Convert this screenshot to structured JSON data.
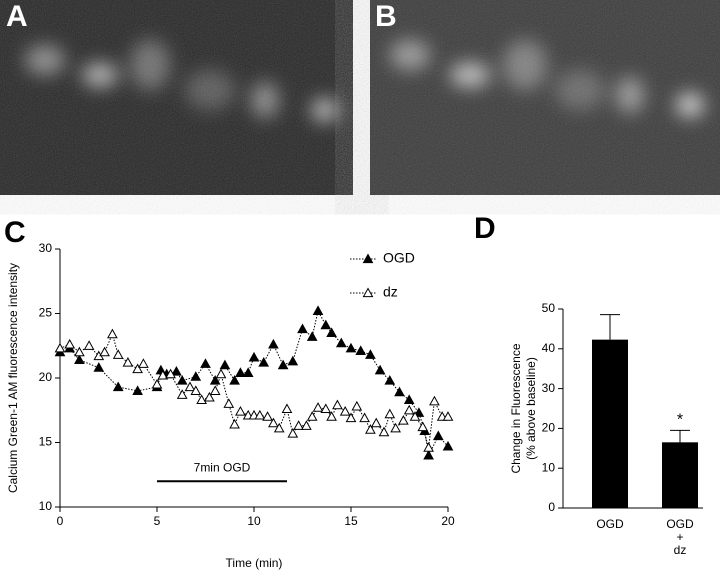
{
  "images": [
    {
      "panel_label": "A"
    },
    {
      "panel_label": "B"
    }
  ],
  "chart_data": [
    {
      "type": "line",
      "panel_label": "C",
      "xlabel": "Time (min)",
      "ylabel": "Calcium Green-1 AM  fluorescence intensity",
      "xlim": [
        0,
        20
      ],
      "ylim": [
        10,
        30
      ],
      "xticks": [
        0,
        5,
        10,
        15,
        20
      ],
      "yticks": [
        10,
        15,
        20,
        25,
        30
      ],
      "legend": "top-right",
      "annotation": {
        "text": "7min OGD",
        "x": [
          5,
          11.7
        ],
        "y": 12
      },
      "series": [
        {
          "name": "OGD",
          "color": "#000000",
          "marker": "filled-triangle",
          "x": [
            0,
            0.5,
            1,
            2,
            3,
            4,
            5,
            5.2,
            5.5,
            6,
            6.3,
            7,
            7.5,
            8,
            8.5,
            9,
            9.3,
            9.7,
            10,
            10.5,
            11,
            11.5,
            12,
            12.5,
            13,
            13.3,
            13.7,
            14,
            14.5,
            15,
            15.5,
            16,
            16.5,
            17,
            17.5,
            18,
            18.5,
            18.8,
            19,
            19.5,
            20
          ],
          "values": [
            22.0,
            22.3,
            21.4,
            20.8,
            19.3,
            19.0,
            19.3,
            20.6,
            20.3,
            20.5,
            19.8,
            20.1,
            21.1,
            19.8,
            21.0,
            19.8,
            20.4,
            20.4,
            21.6,
            21.2,
            22.6,
            21.0,
            21.3,
            23.8,
            23.2,
            25.2,
            24.1,
            23.5,
            22.7,
            22.3,
            22.1,
            21.8,
            20.6,
            19.8,
            18.9,
            18.3,
            17.3,
            15.9,
            14.0,
            15.5,
            14.7
          ]
        },
        {
          "name": "dz",
          "color": "#000000",
          "marker": "open-triangle",
          "x": [
            0,
            0.5,
            1,
            1.5,
            2,
            2.3,
            2.7,
            3,
            3.5,
            4,
            4.3,
            5,
            5.3,
            5.7,
            6.3,
            6.7,
            7,
            7.3,
            7.7,
            8,
            8.3,
            8.7,
            9,
            9.3,
            9.7,
            10,
            10.3,
            10.7,
            11,
            11.3,
            11.7,
            12,
            12.3,
            12.7,
            13,
            13.3,
            13.7,
            14,
            14.3,
            14.7,
            15,
            15.3,
            15.7,
            16,
            16.3,
            16.7,
            17,
            17.3,
            17.7,
            18,
            18.3,
            18.7,
            19,
            19.3,
            19.7,
            20
          ],
          "values": [
            22.3,
            22.6,
            22.0,
            22.5,
            21.7,
            22.0,
            23.4,
            21.8,
            21.2,
            20.7,
            21.1,
            19.5,
            20.2,
            20.3,
            18.7,
            19.3,
            19.0,
            18.3,
            18.5,
            19.0,
            20.3,
            18.0,
            16.4,
            17.4,
            17.1,
            17.1,
            17.1,
            17.0,
            16.5,
            16.1,
            17.6,
            15.7,
            16.3,
            16.3,
            17.0,
            17.7,
            17.6,
            17.0,
            17.9,
            17.4,
            16.9,
            17.8,
            16.9,
            16.0,
            16.5,
            15.8,
            17.2,
            16.1,
            16.7,
            17.5,
            17.0,
            16.2,
            14.6,
            18.2,
            17.0,
            17.0
          ]
        }
      ]
    },
    {
      "type": "bar",
      "panel_label": "D",
      "ylabel": [
        "Change in Fluorescence",
        "(% above baseline)"
      ],
      "categories": [
        [
          "OGD"
        ],
        [
          "OGD",
          "+",
          "dz"
        ]
      ],
      "values": [
        42.3,
        16.5
      ],
      "errors": [
        6.3,
        3.0
      ],
      "significance_labels": [
        null,
        "*"
      ],
      "color": "#000000",
      "ylim": [
        0,
        50
      ],
      "yticks": [
        0,
        10,
        20,
        30,
        40,
        50
      ]
    }
  ]
}
